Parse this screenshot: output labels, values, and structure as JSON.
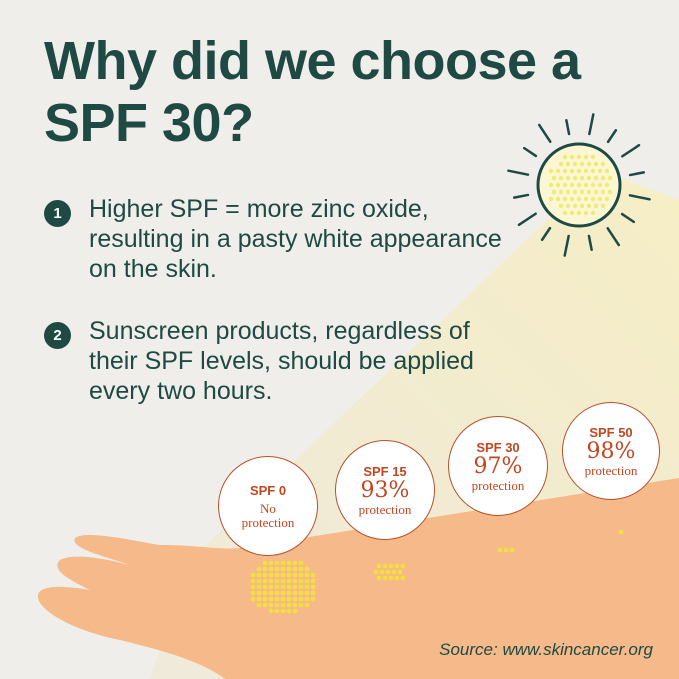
{
  "title": "Why did we choose a SPF 30?",
  "points": [
    {
      "number": "1",
      "text": "Higher SPF = more zinc oxide, resulting in a pasty white appearance on the skin."
    },
    {
      "number": "2",
      "text": "Sunscreen products, regardless of their SPF levels, should be applied every two hours."
    }
  ],
  "badges": [
    {
      "label": "SPF 0",
      "value": "",
      "sub": "No protection"
    },
    {
      "label": "SPF 15",
      "value": "93%",
      "sub": "protection"
    },
    {
      "label": "SPF 30",
      "value": "97%",
      "sub": "protection"
    },
    {
      "label": "SPF 50",
      "value": "98%",
      "sub": "protection"
    }
  ],
  "source": "Source: www.skincancer.org",
  "colors": {
    "primary": "#1f4a44",
    "accent": "#c0471f",
    "skin": "#f5b98a",
    "sun": "#f0ea7a",
    "background": "#efeeea"
  },
  "icons": [
    "sun-icon"
  ]
}
